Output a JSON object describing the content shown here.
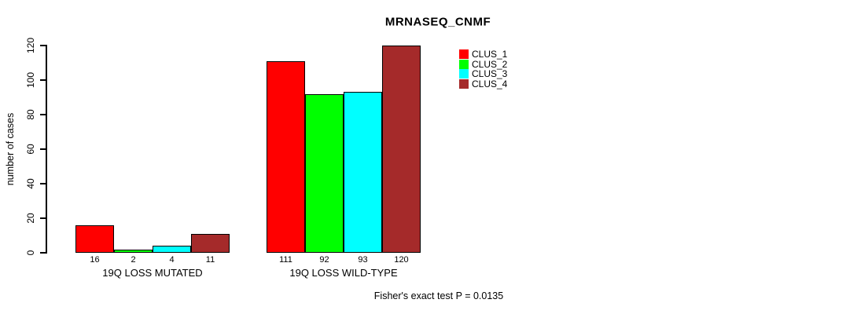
{
  "title": "MRNASEQ_CNMF",
  "footer": "Fisher's exact test P = 0.0135",
  "chart_data": {
    "type": "bar",
    "title": "MRNASEQ_CNMF",
    "ylabel": "number of cases",
    "xlabel": "",
    "ylim": [
      0,
      120
    ],
    "yticks": [
      0,
      20,
      40,
      60,
      80,
      100,
      120
    ],
    "grid": false,
    "legend_position": "top-right",
    "categories": [
      "19Q LOSS MUTATED",
      "19Q LOSS WILD-TYPE"
    ],
    "series": [
      {
        "name": "CLUS_1",
        "color": "#ff0000",
        "values": [
          16,
          111
        ]
      },
      {
        "name": "CLUS_2",
        "color": "#00ff00",
        "values": [
          2,
          92
        ]
      },
      {
        "name": "CLUS_3",
        "color": "#00ffff",
        "values": [
          4,
          93
        ]
      },
      {
        "name": "CLUS_4",
        "color": "#a52a2a",
        "values": [
          11,
          120
        ]
      }
    ],
    "bar_value_labels": [
      [
        "16",
        "2",
        "4",
        "11"
      ],
      [
        "111",
        "92",
        "93",
        "120"
      ]
    ],
    "annotation": "Fisher's exact test P = 0.0135"
  }
}
